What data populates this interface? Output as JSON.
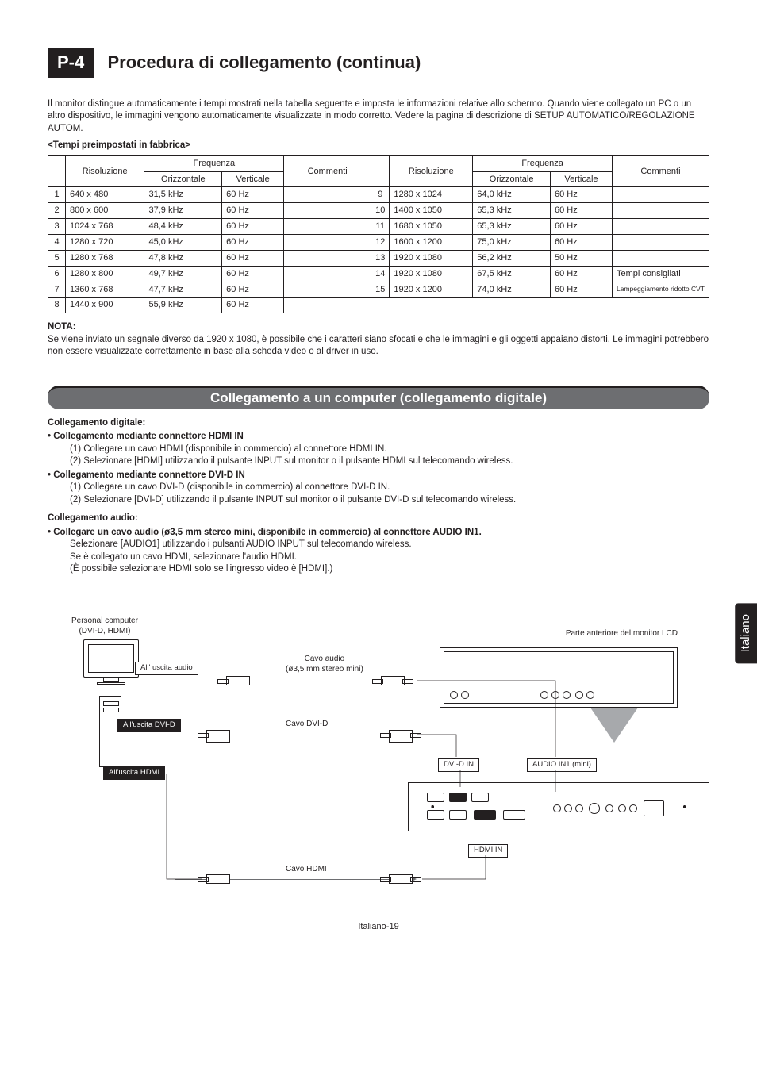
{
  "header": {
    "tag": "P-4",
    "title": "Procedura di collegamento (continua)"
  },
  "intro": "Il monitor distingue automaticamente i tempi mostrati nella tabella seguente e imposta le informazioni relative allo schermo. Quando viene collegato un PC o un altro dispositivo, le immagini vengono automaticamente visualizzate in modo corretto. Vedere la pagina di descrizione di SETUP AUTOMATICO/REGOLAZIONE AUTOM.",
  "preset_head": "<Tempi preimpostati in fabbrica>",
  "table": {
    "headers": {
      "risoluzione": "Risoluzione",
      "frequenza": "Frequenza",
      "orizzontale": "Orizzontale",
      "verticale": "Verticale",
      "commenti": "Commenti"
    },
    "left": [
      {
        "n": "1",
        "res": "640 x 480",
        "h": "31,5 kHz",
        "v": "60 Hz",
        "c": ""
      },
      {
        "n": "2",
        "res": "800 x 600",
        "h": "37,9 kHz",
        "v": "60 Hz",
        "c": ""
      },
      {
        "n": "3",
        "res": "1024 x 768",
        "h": "48,4 kHz",
        "v": "60 Hz",
        "c": ""
      },
      {
        "n": "4",
        "res": "1280 x 720",
        "h": "45,0 kHz",
        "v": "60 Hz",
        "c": ""
      },
      {
        "n": "5",
        "res": "1280 x 768",
        "h": "47,8 kHz",
        "v": "60 Hz",
        "c": ""
      },
      {
        "n": "6",
        "res": "1280 x 800",
        "h": "49,7 kHz",
        "v": "60 Hz",
        "c": ""
      },
      {
        "n": "7",
        "res": "1360 x 768",
        "h": "47,7 kHz",
        "v": "60 Hz",
        "c": ""
      },
      {
        "n": "8",
        "res": "1440 x 900",
        "h": "55,9 kHz",
        "v": "60 Hz",
        "c": ""
      }
    ],
    "right": [
      {
        "n": "9",
        "res": "1280 x 1024",
        "h": "64,0 kHz",
        "v": "60 Hz",
        "c": ""
      },
      {
        "n": "10",
        "res": "1400 x 1050",
        "h": "65,3 kHz",
        "v": "60 Hz",
        "c": ""
      },
      {
        "n": "11",
        "res": "1680 x 1050",
        "h": "65,3 kHz",
        "v": "60 Hz",
        "c": ""
      },
      {
        "n": "12",
        "res": "1600 x 1200",
        "h": "75,0 kHz",
        "v": "60 Hz",
        "c": ""
      },
      {
        "n": "13",
        "res": "1920 x 1080",
        "h": "56,2 kHz",
        "v": "50 Hz",
        "c": ""
      },
      {
        "n": "14",
        "res": "1920 x 1080",
        "h": "67,5 kHz",
        "v": "60 Hz",
        "c": "Tempi consigliati"
      },
      {
        "n": "15",
        "res": "1920 x 1200",
        "h": "74,0 kHz",
        "v": "60 Hz",
        "c": "Lampeggiamento ridotto CVT"
      }
    ]
  },
  "note": {
    "head": "NOTA:",
    "body": "Se viene inviato un segnale diverso da 1920 x 1080, è possibile che i caratteri siano sfocati e che le immagini e gli oggetti appaiano distorti. Le immagini potrebbero non essere visualizzate correttamente in base alla scheda video o al driver in uso."
  },
  "subsection_title": "Collegamento a un computer (collegamento digitale)",
  "digital": {
    "head": "Collegamento digitale:",
    "hdmi_head": "Collegamento mediante connettore HDMI IN",
    "hdmi_1": "(1)  Collegare un cavo HDMI (disponibile in commercio) al connettore HDMI IN.",
    "hdmi_2": "(2)  Selezionare [HDMI] utilizzando il pulsante INPUT sul monitor o il pulsante HDMI sul telecomando wireless.",
    "dvi_head": "Collegamento mediante connettore DVI-D IN",
    "dvi_1": "(1)  Collegare un cavo DVI-D (disponibile in commercio) al connettore DVI-D IN.",
    "dvi_2": "(2)  Selezionare [DVI-D] utilizzando il pulsante INPUT sul monitor o il pulsante DVI-D sul telecomando wireless."
  },
  "audio": {
    "head": "Collegamento audio:",
    "bullet": "Collegare un cavo audio (ø3,5 mm stereo mini, disponibile in commercio) al connettore AUDIO IN1.",
    "l1": "Selezionare [AUDIO1] utilizzando i pulsanti AUDIO INPUT sul telecomando wireless.",
    "l2": "Se è collegato un cavo HDMI, selezionare l'audio HDMI.",
    "l3": "(È possibile selezionare HDMI solo se l'ingresso video è [HDMI].)"
  },
  "side_tab": "Italiano",
  "diagram": {
    "pc_label_1": "Personal computer",
    "pc_label_2": "(DVI-D, HDMI)",
    "front_label": "Parte anteriore del monitor LCD",
    "audio_out": "All' uscita audio",
    "dvi_out": "All'uscita DVI-D",
    "hdmi_out": "All'uscita HDMI",
    "cable_audio_1": "Cavo audio",
    "cable_audio_2": "(ø3,5 mm stereo mini)",
    "cable_dvi": "Cavo DVI-D",
    "cable_hdmi": "Cavo HDMI",
    "port_dvi": "DVI-D IN",
    "port_audio": "AUDIO IN1 (mini)",
    "port_hdmi": "HDMI IN"
  },
  "footer": "Italiano-19",
  "colors": {
    "ink": "#231f20",
    "bar": "#6d6e71",
    "tri": "#a7a9ac"
  }
}
